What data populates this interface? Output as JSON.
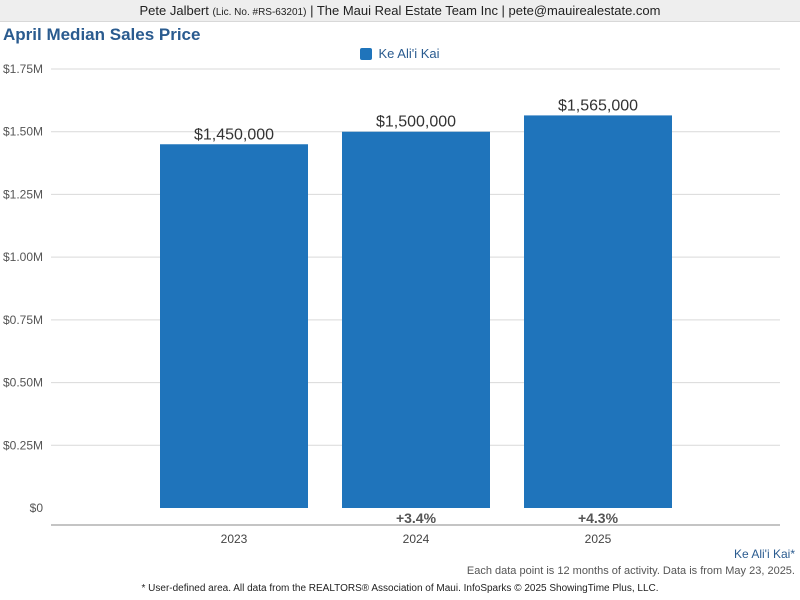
{
  "header": {
    "agent_name": "Pete Jalbert",
    "license": "(Lic. No. #RS-63201)",
    "rest": "| The Maui Real Estate Team Inc | pete@mauirealestate.com"
  },
  "footer": {
    "area_name": "Ke Ali'i Kai*",
    "note": "Each data point is 12 months of activity. Data is from May 23, 2025.",
    "source": "* User-defined area. All data from the REALTORS® Association of Maui. InfoSparks © 2025 ShowingTime Plus, LLC."
  },
  "colors": {
    "bar": "#1f74bb",
    "title": "#2a5b8f",
    "grid": "#d9d9d9"
  },
  "chart_data": {
    "type": "bar",
    "title": "April Median Sales Price",
    "xlabel": "",
    "ylabel": "",
    "categories": [
      "2023",
      "2024",
      "2025"
    ],
    "series": [
      {
        "name": "Ke Ali'i Kai",
        "values": [
          1450000,
          1500000,
          1565000
        ]
      }
    ],
    "value_labels": [
      "$1,450,000",
      "$1,500,000",
      "$1,565,000"
    ],
    "change_labels": [
      "",
      "+3.4%",
      "+4.3%"
    ],
    "ylim": [
      0,
      1750000
    ],
    "yticks": [
      {
        "value": 0,
        "label": "$0"
      },
      {
        "value": 250000,
        "label": "$0.25M"
      },
      {
        "value": 500000,
        "label": "$0.50M"
      },
      {
        "value": 750000,
        "label": "$0.75M"
      },
      {
        "value": 1000000,
        "label": "$1.00M"
      },
      {
        "value": 1250000,
        "label": "$1.25M"
      },
      {
        "value": 1500000,
        "label": "$1.50M"
      },
      {
        "value": 1750000,
        "label": "$1.75M"
      }
    ],
    "grid": true,
    "legend_position": "top-center"
  }
}
